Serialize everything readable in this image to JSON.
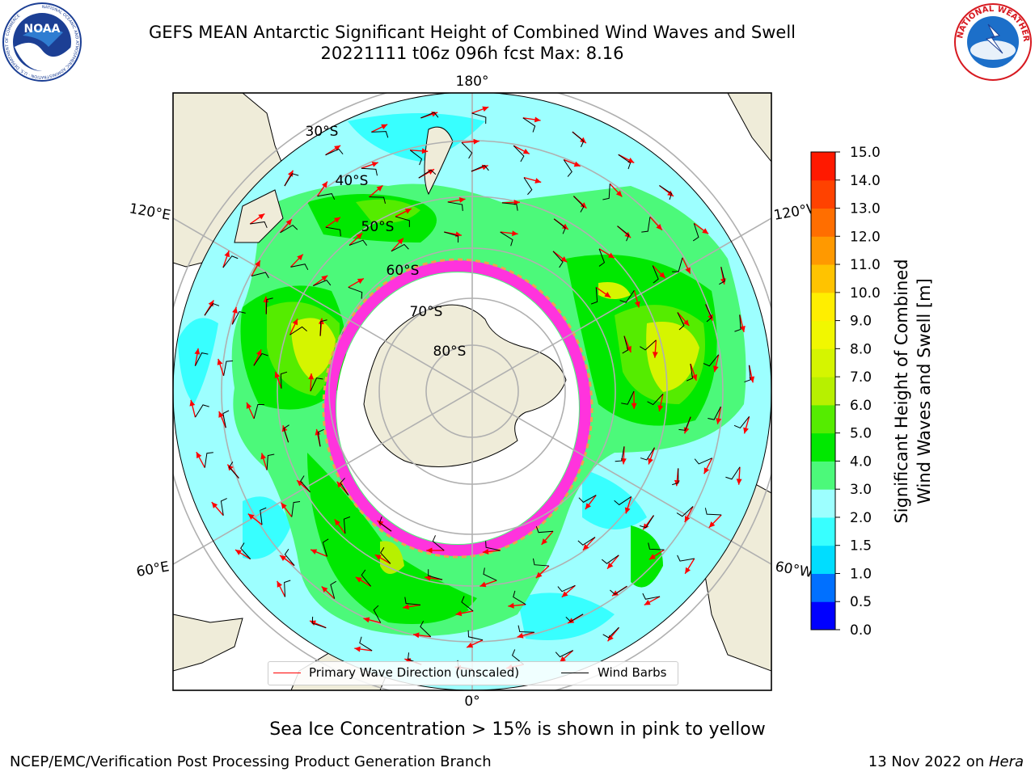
{
  "header": {
    "title_line1": "GEFS MEAN Antarctic Significant Height of Combined Wind Waves and Swell",
    "title_line2": "20221111 t06z 096h fcst   Max: 8.16"
  },
  "logos": {
    "left": {
      "name": "noaa-logo",
      "text": "NOAA",
      "ring_text": "NATIONAL OCEANIC AND ATMOSPHERIC ADMINISTRATION · U.S. DEPARTMENT OF COMMERCE"
    },
    "right": {
      "name": "nws-logo",
      "ring_text": "NATIONAL WEATHER SERVICE"
    }
  },
  "map": {
    "projection": "south-polar-stereographic",
    "meridian_labels": [
      "180°",
      "120°E",
      "120°W",
      "60°E",
      "60°W",
      "0°"
    ],
    "parallel_labels": [
      "30°S",
      "40°S",
      "50°S",
      "60°S",
      "70°S",
      "80°S"
    ],
    "legend": {
      "wave_label": "Primary Wave Direction (unscaled)",
      "wave_color": "#ff0000",
      "wind_label": "Wind Barbs",
      "wind_color": "#000000"
    }
  },
  "colorbar": {
    "label_line1": "Significant Height of Combined",
    "label_line2": "Wind Waves and Swell [m]",
    "ticks": [
      "0.0",
      "0.5",
      "1.0",
      "1.5",
      "2.0",
      "3.0",
      "4.0",
      "5.0",
      "6.0",
      "7.0",
      "8.0",
      "9.0",
      "10.0",
      "11.0",
      "12.0",
      "13.0",
      "14.0",
      "15.0"
    ],
    "colors": [
      "#0000ff",
      "#0070ff",
      "#00ddff",
      "#38ffff",
      "#9dffff",
      "#4cf97a",
      "#00e800",
      "#55ec00",
      "#b7f000",
      "#d5f500",
      "#f1f700",
      "#ffee00",
      "#ffc300",
      "#ff9900",
      "#ff6e00",
      "#ff4200",
      "#ff1900"
    ]
  },
  "captions": {
    "ice_note": "Sea Ice Concentration > 15% is shown in pink to yellow",
    "credit": "NCEP/EMC/Verification Post Processing Product Generation Branch",
    "date_prefix": "13 Nov 2022 on ",
    "date_host": "Hera"
  }
}
